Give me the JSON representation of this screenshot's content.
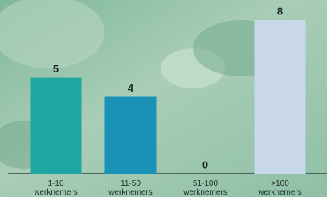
{
  "chart_data": {
    "type": "bar",
    "categories": [
      "1-10\nwerknemers",
      "11-50\nwerknemers",
      "51-100\nwerknemers",
      ">100\nwerknemers"
    ],
    "values": [
      5,
      4,
      0,
      8
    ],
    "colors": [
      "#1ea7a2",
      "#1a92b8",
      "#1a92b8",
      "#c8d8e8"
    ],
    "ylim": [
      0,
      8
    ]
  }
}
